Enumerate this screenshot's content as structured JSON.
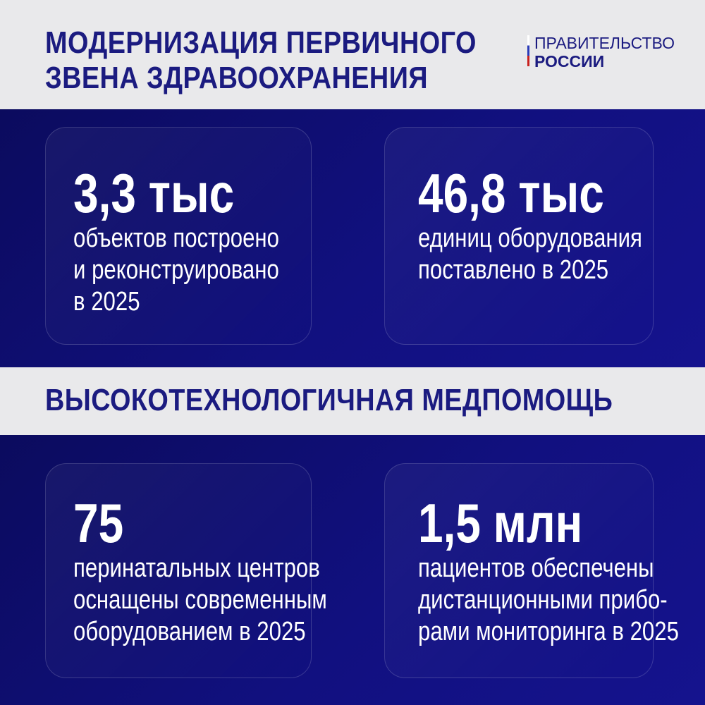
{
  "header": {
    "title_line1": "МОДЕРНИЗАЦИЯ ПЕРВИЧНОГО",
    "title_line2": "ЗВЕНА ЗДРАВООХРАНЕНИЯ",
    "logo_line1": "ПРАВИТЕЛЬСТВО",
    "logo_line2": "РОССИИ"
  },
  "section1": {
    "cards": [
      {
        "value": "3,3 тыс",
        "lines": [
          "объектов построено",
          "и реконструировано",
          "в 2025"
        ]
      },
      {
        "value": "46,8 тыс",
        "lines": [
          "единиц оборудования",
          "поставлено в 2025"
        ]
      }
    ]
  },
  "section2": {
    "title": "ВЫСОКОТЕХНОЛОГИЧНАЯ МЕДПОМОЩЬ",
    "cards": [
      {
        "value": "75",
        "lines": [
          "перинатальных центров",
          "оснащены современным",
          "оборудованием в 2025"
        ]
      },
      {
        "value": "1,5 млн",
        "lines": [
          "пациентов обеспечены",
          "дистанционными прибо-",
          "рами мониторинга в 2025"
        ]
      }
    ]
  },
  "colors": {
    "title": "#1b1b80",
    "background_dark": "#11107f",
    "band": "#e9e9eb",
    "flag_red": "#c8201e",
    "flag_blue": "#2a3bb8"
  }
}
